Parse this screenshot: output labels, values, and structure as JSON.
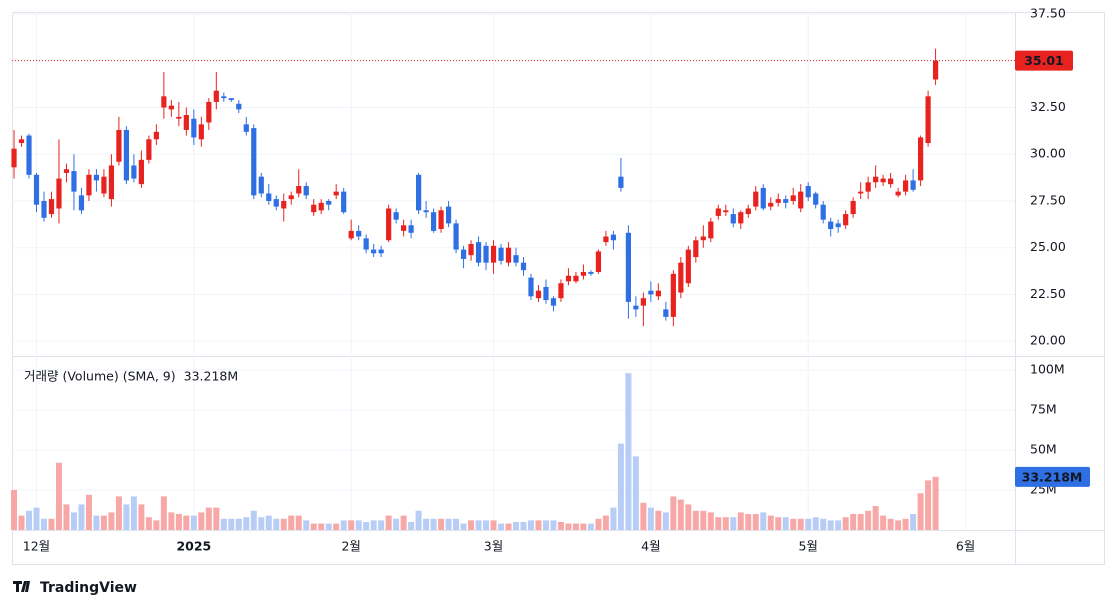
{
  "chart_data": [
    {
      "type": "candlestick",
      "up_color": "#e8231f",
      "down_color": "#2f6fe4",
      "xlim": [
        -0.27,
        133.6
      ],
      "xticks": [
        {
          "value": 3,
          "label": "12월"
        },
        {
          "value": 24,
          "label": "2025"
        },
        {
          "value": 45,
          "label": "2월"
        },
        {
          "value": 64,
          "label": "3월"
        },
        {
          "value": 85,
          "label": "4월"
        },
        {
          "value": 106,
          "label": "5월"
        },
        {
          "value": 127,
          "label": "6월"
        }
      ],
      "ylim": [
        19.26,
        37.61
      ],
      "yticks": [
        {
          "value": 20,
          "label": "20.00"
        },
        {
          "value": 22.5,
          "label": "22.50"
        },
        {
          "value": 25,
          "label": "25.00"
        },
        {
          "value": 27.5,
          "label": "27.50"
        },
        {
          "value": 30,
          "label": "30.00"
        },
        {
          "value": 32.5,
          "label": "32.50"
        },
        {
          "value": 35,
          "label": "35.00"
        },
        {
          "value": 37.5,
          "label": "37.50"
        }
      ],
      "grid": true,
      "open": [
        29.3,
        30.6,
        31.0,
        28.9,
        27.5,
        26.8,
        27.1,
        29.0,
        29.1,
        27.8,
        27.8,
        28.9,
        27.9,
        27.6,
        29.6,
        31.3,
        29.4,
        28.4,
        29.7,
        30.8,
        32.5,
        32.4,
        31.9,
        31.3,
        31.9,
        30.8,
        31.7,
        32.8,
        33.1,
        33.0,
        32.7,
        31.6,
        31.4,
        28.8,
        27.9,
        27.6,
        27.1,
        27.6,
        27.9,
        28.3,
        26.9,
        27.0,
        27.5,
        27.8,
        28.0,
        25.5,
        25.9,
        25.5,
        24.9,
        24.9,
        25.4,
        26.9,
        25.9,
        26.2,
        28.9,
        27.0,
        26.9,
        26.0,
        27.2,
        26.3,
        24.9,
        24.6,
        25.3,
        25.1,
        24.2,
        25.0,
        24.2,
        24.6,
        24.2,
        23.4,
        22.3,
        22.9,
        22.3,
        22.3,
        23.2,
        23.2,
        23.5,
        23.7,
        23.7,
        25.3,
        25.7,
        28.8,
        25.8,
        21.9,
        21.9,
        22.7,
        22.4,
        21.7,
        21.3,
        22.6,
        23.1,
        24.5,
        25.4,
        25.5,
        26.7,
        26.9,
        26.8,
        26.3,
        26.8,
        27.2,
        28.2,
        27.2,
        27.4,
        27.6,
        27.5,
        27.1,
        28.3,
        27.9,
        27.3,
        26.4,
        26.3,
        26.2,
        26.8,
        27.9,
        28.0,
        28.5,
        28.5,
        28.4,
        27.8,
        28.0,
        28.6,
        28.6,
        30.6,
        34.0
      ],
      "high": [
        31.3,
        31.0,
        31.1,
        29.0,
        28.0,
        28.0,
        30.8,
        29.5,
        30.0,
        28.2,
        29.2,
        29.2,
        29.2,
        30.0,
        32.0,
        31.5,
        30.0,
        30.2,
        31.0,
        31.6,
        34.4,
        32.9,
        32.8,
        32.5,
        32.4,
        32.0,
        33.0,
        34.4,
        33.3,
        33.0,
        32.9,
        32.0,
        31.6,
        29.0,
        28.4,
        27.8,
        27.9,
        28.0,
        29.2,
        28.5,
        27.6,
        27.6,
        27.6,
        28.4,
        28.2,
        26.5,
        26.2,
        25.7,
        25.2,
        25.1,
        27.3,
        27.1,
        26.5,
        26.5,
        29.0,
        27.5,
        27.1,
        27.2,
        27.5,
        26.5,
        25.1,
        25.4,
        25.6,
        25.3,
        25.4,
        25.2,
        25.3,
        25.0,
        24.5,
        23.6,
        23.0,
        23.3,
        22.4,
        23.3,
        23.9,
        23.7,
        24.1,
        23.8,
        24.9,
        25.9,
        25.9,
        29.8,
        26.2,
        22.4,
        22.6,
        23.2,
        23.1,
        22.1,
        23.8,
        24.5,
        25.1,
        25.6,
        26.2,
        26.6,
        27.3,
        27.3,
        27.1,
        27.0,
        27.3,
        28.3,
        28.4,
        27.7,
        27.9,
        27.8,
        28.2,
        28.4,
        28.5,
        28.0,
        27.5,
        26.6,
        26.5,
        27.0,
        27.7,
        28.5,
        28.8,
        29.4,
        28.9,
        29.0,
        28.2,
        28.9,
        29.2,
        31.0,
        33.4,
        35.65
      ],
      "low": [
        28.7,
        30.4,
        28.7,
        26.9,
        26.4,
        26.6,
        26.3,
        28.5,
        27.0,
        26.8,
        27.5,
        28.0,
        27.7,
        27.2,
        29.4,
        28.4,
        28.5,
        28.2,
        29.5,
        30.5,
        31.9,
        32.0,
        31.5,
        31.0,
        30.5,
        30.4,
        31.3,
        32.4,
        32.8,
        32.8,
        32.2,
        31.0,
        27.6,
        27.7,
        27.3,
        27.0,
        26.4,
        27.3,
        27.7,
        27.6,
        26.7,
        26.8,
        27.0,
        27.6,
        26.8,
        25.4,
        25.4,
        24.7,
        24.5,
        24.5,
        25.3,
        26.3,
        25.6,
        25.5,
        26.8,
        26.6,
        25.8,
        25.8,
        26.1,
        24.7,
        23.9,
        24.3,
        24.0,
        23.8,
        23.6,
        24.1,
        24.0,
        24.0,
        23.5,
        22.2,
        22.1,
        22.0,
        21.6,
        22.1,
        23.0,
        23.1,
        23.3,
        23.5,
        23.6,
        25.1,
        24.9,
        28.0,
        21.2,
        21.3,
        20.8,
        22.1,
        22.2,
        21.1,
        20.8,
        22.3,
        22.9,
        24.2,
        25.0,
        25.3,
        26.5,
        26.7,
        26.1,
        26.0,
        26.6,
        27.0,
        27.0,
        27.0,
        27.2,
        27.1,
        27.3,
        26.9,
        27.5,
        27.1,
        26.3,
        25.6,
        25.8,
        26.0,
        26.6,
        27.6,
        27.6,
        28.2,
        28.3,
        28.2,
        27.7,
        27.8,
        28.0,
        28.3,
        30.4,
        33.7
      ],
      "close": [
        30.3,
        30.8,
        28.9,
        27.3,
        26.6,
        27.6,
        28.7,
        29.2,
        28.0,
        27.0,
        28.9,
        28.6,
        28.8,
        29.4,
        31.3,
        28.6,
        28.7,
        29.7,
        30.8,
        31.2,
        33.1,
        32.6,
        32.0,
        32.1,
        30.9,
        31.6,
        32.8,
        33.4,
        33.0,
        32.9,
        32.4,
        31.2,
        27.8,
        27.9,
        27.5,
        27.2,
        27.5,
        27.8,
        28.3,
        27.8,
        27.3,
        27.4,
        27.3,
        28.0,
        26.9,
        25.9,
        25.6,
        24.9,
        24.7,
        24.7,
        27.1,
        26.5,
        26.2,
        25.8,
        27.0,
        26.9,
        25.9,
        27.0,
        26.3,
        24.9,
        24.4,
        25.2,
        24.2,
        24.2,
        25.1,
        24.3,
        25.0,
        24.2,
        23.8,
        22.4,
        22.7,
        22.2,
        21.9,
        23.1,
        23.5,
        23.5,
        23.7,
        23.6,
        24.8,
        25.6,
        25.4,
        28.2,
        22.1,
        21.7,
        22.3,
        22.5,
        22.7,
        21.3,
        23.6,
        24.2,
        24.9,
        25.4,
        25.6,
        26.4,
        27.1,
        27.0,
        26.3,
        26.9,
        27.1,
        28.0,
        27.1,
        27.4,
        27.6,
        27.4,
        27.8,
        28.0,
        27.7,
        27.3,
        26.5,
        26.0,
        26.1,
        26.8,
        27.5,
        28.0,
        28.5,
        28.8,
        28.7,
        28.7,
        28.0,
        28.6,
        28.1,
        30.9,
        33.1,
        35.01
      ]
    },
    {
      "type": "bar",
      "title": "거래량 (Volume) (SMA, 9)",
      "up_color": "#f7a8a6",
      "down_color": "#b7cdf6",
      "label_color": "#2f6fe4",
      "ylim": [
        0,
        108.1
      ],
      "yticks": [
        {
          "value": 25,
          "label": "25M"
        },
        {
          "value": 50,
          "label": "50M"
        },
        {
          "value": 75,
          "label": "75M"
        },
        {
          "value": 100,
          "label": "100M"
        }
      ],
      "grid": true,
      "values": [
        25,
        9,
        12,
        14,
        7,
        7,
        42,
        16,
        11,
        16,
        22,
        9,
        9,
        11,
        21,
        16,
        21,
        16,
        8,
        6,
        21,
        11,
        10,
        9,
        9,
        11,
        14,
        14,
        7,
        7,
        7,
        8,
        12,
        8,
        9,
        7,
        7,
        9,
        9,
        6,
        4,
        4,
        4,
        4,
        6,
        6,
        6,
        5,
        6,
        6,
        9,
        7,
        9,
        5,
        12,
        7,
        7,
        7,
        7,
        7,
        4,
        6,
        6,
        6,
        6,
        4,
        4,
        5,
        5,
        6,
        6,
        6,
        6,
        5,
        4,
        4,
        4,
        4,
        7,
        9,
        14,
        54,
        98,
        46,
        17,
        14,
        12,
        11,
        21,
        19,
        16,
        12,
        12,
        11,
        8,
        8,
        8,
        11,
        10,
        10,
        11,
        9,
        8,
        8,
        7,
        7,
        7,
        8,
        7,
        6,
        6,
        8,
        10,
        10,
        12,
        15,
        9,
        7,
        6,
        7,
        10,
        23,
        31,
        33.218
      ],
      "value_labels": [
        null,
        null,
        null,
        null,
        null,
        null,
        null,
        null,
        null,
        null,
        null,
        null,
        null,
        null,
        null,
        null,
        null,
        null,
        null,
        null,
        null,
        null,
        null,
        null,
        null,
        null,
        null,
        null,
        null,
        null,
        null,
        null,
        null,
        null,
        null,
        null,
        null,
        null,
        null,
        null,
        null,
        null,
        null,
        null,
        null,
        null,
        null,
        null,
        null,
        null,
        null,
        null,
        null,
        null,
        null,
        null,
        null,
        null,
        null,
        null,
        null,
        null,
        null,
        null,
        null,
        null,
        null,
        null,
        null,
        null,
        null,
        null,
        null,
        null,
        null,
        null,
        null,
        null,
        null,
        null,
        null,
        null,
        null,
        null,
        null,
        null,
        null,
        null,
        null,
        null,
        null,
        null,
        null,
        null,
        null,
        null,
        null,
        null,
        null,
        null,
        null,
        null,
        null,
        null,
        null,
        null,
        null,
        null,
        null,
        null,
        null,
        null,
        null,
        null,
        null,
        null,
        null,
        null,
        null,
        null,
        null,
        null,
        null,
        "33.218M"
      ]
    }
  ],
  "branding": "TradingView"
}
